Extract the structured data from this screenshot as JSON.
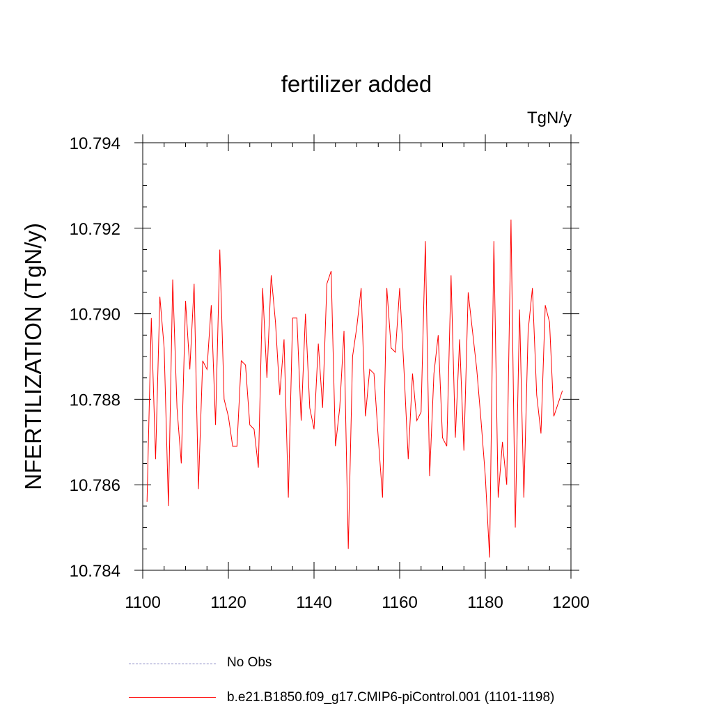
{
  "chart_data": {
    "type": "line",
    "title": "fertilizer added",
    "units_label": "TgN/y",
    "ylabel": "NFERTILIZATION  (TgN/y)",
    "xlabel": "",
    "xlim": [
      1100,
      1200
    ],
    "ylim": [
      10.784,
      10.794
    ],
    "x_ticks": [
      "1100",
      "1120",
      "1140",
      "1160",
      "1180",
      "1200"
    ],
    "y_ticks": [
      "10.784",
      "10.786",
      "10.788",
      "10.790",
      "10.792",
      "10.794"
    ],
    "grid": false,
    "legend_position": "bottom",
    "series": [
      {
        "name": "No Obs",
        "color": "#8080c0",
        "style": "dashed",
        "x": [],
        "values": []
      },
      {
        "name": "b.e21.B1850.f09_g17.CMIP6-piControl.001 (1101-1198)",
        "color": "#ff0000",
        "style": "solid",
        "x_start": 1101,
        "x_end": 1198,
        "values": [
          10.7856,
          10.7899,
          10.7866,
          10.7904,
          10.7892,
          10.7855,
          10.7908,
          10.7878,
          10.7865,
          10.7903,
          10.7887,
          10.7907,
          10.7859,
          10.7889,
          10.7887,
          10.7902,
          10.7874,
          10.7915,
          10.788,
          10.7876,
          10.7869,
          10.7869,
          10.7889,
          10.7888,
          10.7874,
          10.7873,
          10.7864,
          10.7906,
          10.7885,
          10.7909,
          10.7898,
          10.7881,
          10.7894,
          10.7857,
          10.7899,
          10.7899,
          10.7875,
          10.79,
          10.7878,
          10.7873,
          10.7893,
          10.7878,
          10.7907,
          10.791,
          10.7869,
          10.7878,
          10.7896,
          10.7845,
          10.789,
          10.7897,
          10.7906,
          10.7876,
          10.7887,
          10.7886,
          10.7871,
          10.7857,
          10.7906,
          10.7892,
          10.7891,
          10.7906,
          10.7887,
          10.7866,
          10.7886,
          10.7875,
          10.7877,
          10.7917,
          10.7862,
          10.7886,
          10.7895,
          10.7871,
          10.7869,
          10.7909,
          10.7871,
          10.7894,
          10.7868,
          10.7905,
          10.7896,
          10.7887,
          10.7875,
          10.7862,
          10.7843,
          10.7917,
          10.7857,
          10.787,
          10.786,
          10.7922,
          10.785,
          10.7901,
          10.7857,
          10.7896,
          10.7906,
          10.7881,
          10.7872,
          10.7902,
          10.7898,
          10.7876,
          10.7879,
          10.7882
        ]
      }
    ]
  }
}
